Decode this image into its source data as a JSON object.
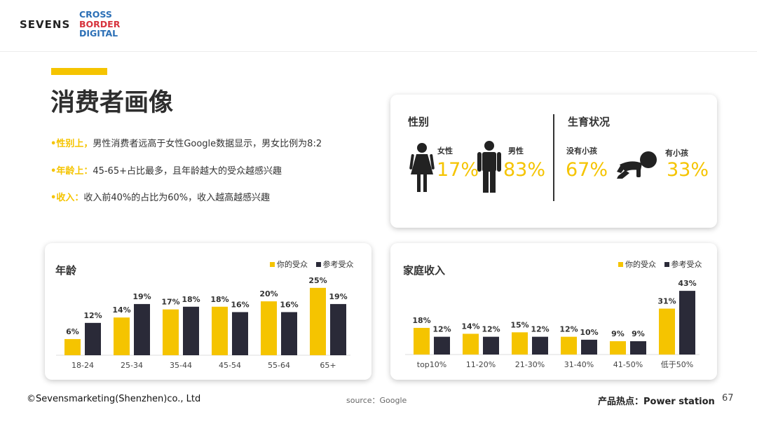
{
  "brand": {
    "logo": "SEVENS",
    "sub_logo": [
      "CROSS",
      "BORDER",
      "DIGITAL"
    ]
  },
  "page_title": "消费者画像",
  "bullets": [
    {
      "bullet": "•",
      "highlight": "性别上，",
      "text": "男性消费者远高于女性Google数据显示，男女比例为8:2"
    },
    {
      "bullet": "•",
      "highlight": "年龄上：",
      "text": "45-65+占比最多，且年龄越大的受众越感兴趣"
    },
    {
      "bullet": "•",
      "highlight": "收入：",
      "text": "收入前40%的占比为60%，收入越高越感兴趣"
    }
  ],
  "gender_panel": {
    "gender_label": "性别",
    "parent_label": "生育状况",
    "female": {
      "label": "女性",
      "value": "17%",
      "icon": "female-icon"
    },
    "male": {
      "label": "男性",
      "value": "83%",
      "icon": "male-icon"
    },
    "no_child": {
      "label": "没有小孩",
      "value": "67%"
    },
    "has_child": {
      "label": "有小孩",
      "value": "33%",
      "icon": "crawling-baby-icon"
    }
  },
  "colors": {
    "yours": "#f5c400",
    "reference": "#2a2a38"
  },
  "chart_data": [
    {
      "type": "bar",
      "title": "年龄",
      "categories": [
        "18-24",
        "25-34",
        "35-44",
        "45-54",
        "55-64",
        "65+"
      ],
      "series": [
        {
          "name": "你的受众",
          "values": [
            6,
            14,
            17,
            18,
            20,
            25
          ]
        },
        {
          "name": "参考受众",
          "values": [
            12,
            19,
            18,
            16,
            16,
            19
          ]
        }
      ],
      "value_suffix": "%",
      "ylim": [
        0,
        26
      ],
      "legend": "top-right"
    },
    {
      "type": "bar",
      "title": "家庭收入",
      "categories": [
        "top10%",
        "11-20%",
        "21-30%",
        "31-40%",
        "41-50%",
        "低于50%"
      ],
      "series": [
        {
          "name": "你的受众",
          "values": [
            18,
            14,
            15,
            12,
            9,
            31
          ]
        },
        {
          "name": "参考受众",
          "values": [
            12,
            12,
            12,
            10,
            9,
            43
          ]
        }
      ],
      "value_suffix": "%",
      "ylim": [
        0,
        44
      ],
      "legend": "top-right"
    }
  ],
  "footer": {
    "copyright": "©Sevensmarketing(Shenzhen)co., Ltd",
    "source": "source：Google",
    "section": "产品热点：Power station",
    "page_number": "67"
  }
}
